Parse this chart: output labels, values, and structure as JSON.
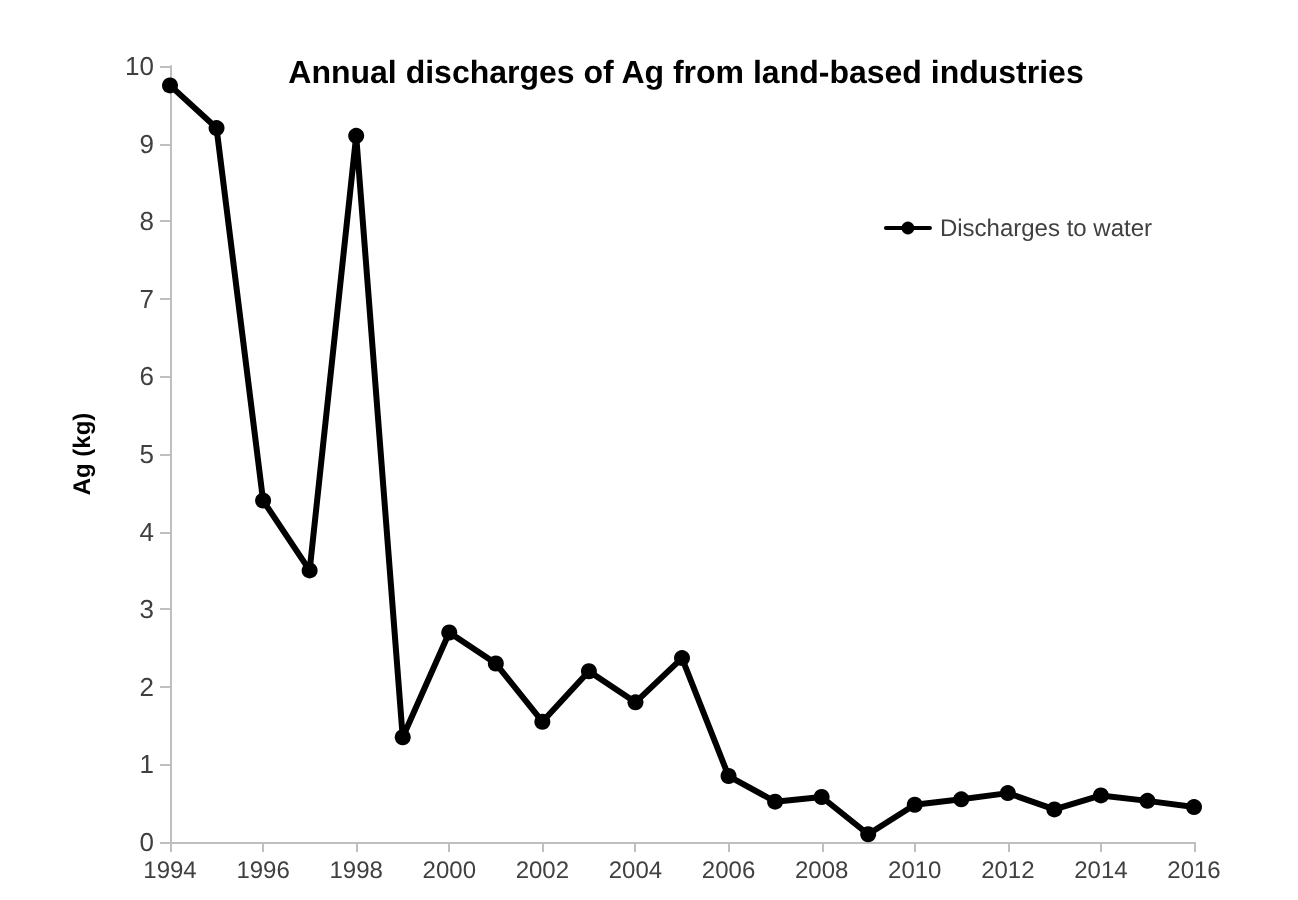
{
  "chart_data": {
    "type": "line",
    "title": "Annual discharges of Ag from land-based industries",
    "ylabel": "Ag (kg)",
    "x": [
      1994,
      1995,
      1996,
      1997,
      1998,
      1999,
      2000,
      2001,
      2002,
      2003,
      2004,
      2005,
      2006,
      2007,
      2008,
      2009,
      2010,
      2011,
      2012,
      2013,
      2014,
      2015,
      2016
    ],
    "series": [
      {
        "name": "Discharges to water",
        "color": "#000000",
        "values": [
          9.75,
          9.2,
          4.4,
          3.5,
          9.1,
          1.35,
          2.7,
          2.3,
          1.55,
          2.2,
          1.8,
          2.37,
          0.85,
          0.52,
          0.58,
          0.1,
          0.48,
          0.55,
          0.63,
          0.42,
          0.6,
          0.53,
          0.45
        ]
      }
    ],
    "xlim": [
      1994,
      2016
    ],
    "xticks": [
      1994,
      1996,
      1998,
      2000,
      2002,
      2004,
      2006,
      2008,
      2010,
      2012,
      2014,
      2016
    ],
    "ylim": [
      0,
      10
    ],
    "yticks": [
      0,
      1,
      2,
      3,
      4,
      5,
      6,
      7,
      8,
      9,
      10
    ],
    "grid": false,
    "legend": "top right",
    "marker": "circle",
    "line_style": "solid"
  }
}
